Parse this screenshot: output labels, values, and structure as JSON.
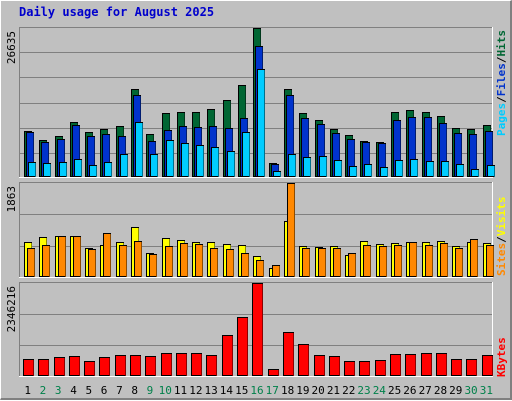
{
  "title": "Daily usage for August 2025",
  "colors": {
    "hits": "#006633",
    "files": "#0033cc",
    "pages": "#00ccff",
    "visits": "#ffff00",
    "sites": "#ff8800",
    "kbytes": "#ff0000",
    "weekend_label": "#00804a",
    "weekday_label": "#000000"
  },
  "right_labels": {
    "top": [
      "Pages",
      "/",
      "Files",
      "/",
      "Hits"
    ],
    "middle": [
      "Sites",
      "/",
      "Visits"
    ],
    "bottom": [
      "KBytes"
    ]
  },
  "chart_data": [
    {
      "type": "bar",
      "name": "hits-files-pages",
      "y_max_label": "26635",
      "ylim": [
        0,
        26635
      ],
      "categories": [
        "1",
        "2",
        "3",
        "4",
        "5",
        "6",
        "7",
        "8",
        "9",
        "10",
        "11",
        "12",
        "13",
        "14",
        "15",
        "16",
        "17",
        "18",
        "19",
        "20",
        "21",
        "22",
        "23",
        "24",
        "25",
        "26",
        "27",
        "28",
        "29",
        "30",
        "31"
      ],
      "weekend_days": [
        "2",
        "3",
        "9",
        "10",
        "16",
        "17",
        "23",
        "24",
        "30",
        "31"
      ],
      "series": [
        {
          "name": "Hits",
          "values": [
            8300,
            6600,
            7300,
            9800,
            8100,
            8500,
            9100,
            15800,
            7700,
            11500,
            11600,
            11600,
            12100,
            13700,
            16400,
            26635,
            2500,
            15800,
            11400,
            10200,
            8500,
            7500,
            6500,
            6300,
            11700,
            12000,
            11700,
            10900,
            8800,
            8600,
            9300
          ]
        },
        {
          "name": "Files",
          "values": [
            8000,
            6200,
            6800,
            9300,
            7400,
            7700,
            7300,
            14600,
            6400,
            8400,
            9200,
            8900,
            9100,
            8800,
            10600,
            23500,
            2300,
            14600,
            10500,
            9500,
            7800,
            6800,
            6300,
            6100,
            10100,
            10800,
            10800,
            9700,
            7800,
            7600,
            8200
          ]
        },
        {
          "name": "Pages",
          "values": [
            2600,
            2500,
            2700,
            3300,
            2200,
            2600,
            4200,
            9800,
            4200,
            6700,
            6000,
            5800,
            5300,
            4600,
            8000,
            19300,
            1000,
            4200,
            3500,
            3700,
            3100,
            2000,
            2300,
            1700,
            3100,
            3200,
            2900,
            2800,
            2400,
            1500,
            2100
          ]
        }
      ]
    },
    {
      "type": "bar",
      "name": "visits-sites",
      "y_max_label": "1863",
      "ylim": [
        0,
        1863
      ],
      "categories": [
        "1",
        "2",
        "3",
        "4",
        "5",
        "6",
        "7",
        "8",
        "9",
        "10",
        "11",
        "12",
        "13",
        "14",
        "15",
        "16",
        "17",
        "18",
        "19",
        "20",
        "21",
        "22",
        "23",
        "24",
        "25",
        "26",
        "27",
        "28",
        "29",
        "30",
        "31"
      ],
      "series": [
        {
          "name": "Visits",
          "values": [
            700,
            800,
            810,
            810,
            580,
            640,
            700,
            990,
            480,
            780,
            730,
            700,
            700,
            650,
            630,
            410,
            180,
            1110,
            620,
            600,
            620,
            440,
            710,
            660,
            670,
            700,
            690,
            720,
            620,
            700,
            680
          ]
        },
        {
          "name": "Sites",
          "values": [
            580,
            630,
            810,
            810,
            550,
            870,
            640,
            710,
            460,
            610,
            680,
            650,
            580,
            560,
            480,
            340,
            230,
            1863,
            570,
            580,
            570,
            480,
            640,
            620,
            640,
            690,
            640,
            670,
            580,
            760,
            640
          ]
        }
      ]
    },
    {
      "type": "bar",
      "name": "kbytes",
      "y_max_label": "2346216",
      "ylim": [
        0,
        2346216
      ],
      "categories": [
        "1",
        "2",
        "3",
        "4",
        "5",
        "6",
        "7",
        "8",
        "9",
        "10",
        "11",
        "12",
        "13",
        "14",
        "15",
        "16",
        "17",
        "18",
        "19",
        "20",
        "21",
        "22",
        "23",
        "24",
        "25",
        "26",
        "27",
        "28",
        "29",
        "30",
        "31"
      ],
      "series": [
        {
          "name": "KBytes",
          "values": [
            440000,
            420000,
            470000,
            500000,
            380000,
            470000,
            540000,
            540000,
            500000,
            590000,
            590000,
            570000,
            540000,
            1030000,
            1480000,
            2346216,
            170000,
            1110000,
            800000,
            540000,
            500000,
            370000,
            370000,
            400000,
            560000,
            550000,
            580000,
            570000,
            440000,
            430000,
            540000
          ]
        }
      ]
    }
  ]
}
